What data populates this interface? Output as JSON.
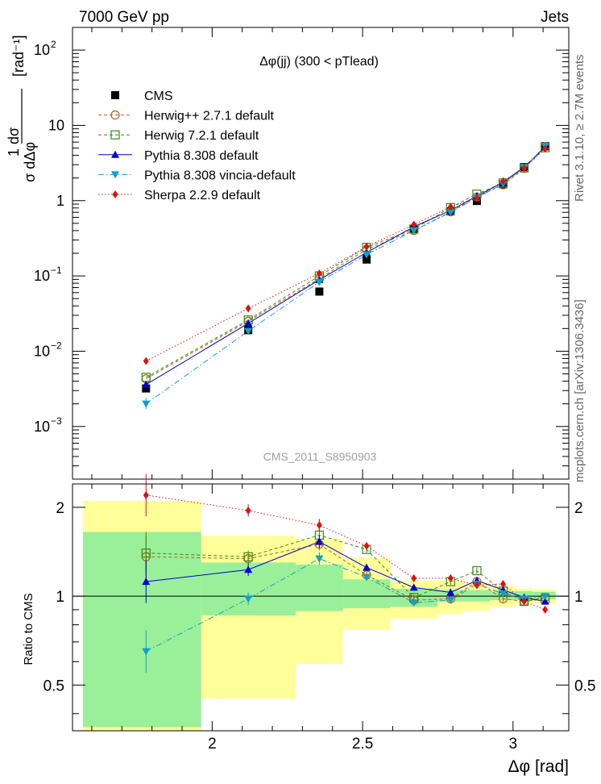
{
  "header": {
    "left": "7000 GeV pp",
    "right": "Jets",
    "side_top": "Rivet 3.1.10, ≥ 2.7M events",
    "side_bottom": "mcplots.cern.ch [arXiv:1306.3436]"
  },
  "chart_data": [
    {
      "type": "scatter",
      "title": "Δφ(jj) (300 < pTlead)",
      "watermark": "CMS_2011_S8950903",
      "ylabel_top": "1 dσ",
      "ylabel_bottom": "σ dΔφ",
      "ylabel_unit": "[rad⁻¹]",
      "yscale": "log",
      "ylim": [
        0.0002,
        200
      ],
      "xlim": [
        1.5358,
        3.1853
      ],
      "x": [
        1.7802,
        2.12,
        2.3562,
        2.5133,
        2.6704,
        2.7925,
        2.8798,
        2.967,
        3.0369,
        3.1067
      ],
      "series": [
        {
          "name": "CMS",
          "color": "#000000",
          "marker": "square-filled",
          "line": "none",
          "values": [
            0.0032,
            0.019,
            0.062,
            0.165,
            0.42,
            0.72,
            0.99,
            1.65,
            2.8,
            5.3
          ]
        },
        {
          "name": "Herwig++ 2.7.1 default",
          "color": "#b06020",
          "marker": "circle-open",
          "line": "dashed",
          "values": [
            0.0043,
            0.025,
            0.092,
            0.225,
            0.4,
            0.71,
            1.12,
            1.62,
            2.68,
            5.25
          ]
        },
        {
          "name": "Herwig 7.2.1 default",
          "color": "#3a8a10",
          "marker": "square-open",
          "line": "dashed",
          "values": [
            0.0045,
            0.026,
            0.1,
            0.24,
            0.42,
            0.81,
            1.22,
            1.72,
            2.72,
            5.05
          ]
        },
        {
          "name": "Pythia 8.308 default",
          "color": "#0000d0",
          "marker": "triangle-up",
          "line": "solid",
          "values": [
            0.0036,
            0.0235,
            0.089,
            0.205,
            0.45,
            0.74,
            1.15,
            1.75,
            2.8,
            5.15
          ]
        },
        {
          "name": "Pythia 8.308 vincia-default",
          "color": "#10a0c8",
          "marker": "triangle-down",
          "line": "dashdot",
          "values": [
            0.002,
            0.0185,
            0.083,
            0.192,
            0.4,
            0.7,
            1.09,
            1.68,
            2.75,
            5.3
          ]
        },
        {
          "name": "Sherpa 2.2.9 default",
          "color": "#e01010",
          "marker": "diamond",
          "line": "dotted",
          "values": [
            0.0074,
            0.037,
            0.108,
            0.245,
            0.48,
            0.83,
            1.08,
            1.82,
            2.68,
            4.9
          ]
        }
      ]
    },
    {
      "type": "line",
      "ylabel": "Ratio to CMS",
      "xlabel": "Δφ [rad]",
      "yscale": "log",
      "ylim": [
        0.35,
        2.4
      ],
      "xlim": [
        1.5358,
        3.1853
      ],
      "yticks": [
        "0.5",
        "1",
        "2"
      ],
      "xticks": [
        "2",
        "2.5",
        "3"
      ],
      "x": [
        1.7802,
        2.12,
        2.3562,
        2.5133,
        2.6704,
        2.7925,
        2.8798,
        2.967,
        3.0369,
        3.1067
      ],
      "bands": {
        "edges": [
          1.5708,
          1.9635,
          2.2776,
          2.4347,
          2.5918,
          2.7489,
          2.8362,
          2.9234,
          3.0107,
          3.063,
          3.1416
        ],
        "stat_lo": [
          0.36,
          0.86,
          0.89,
          0.91,
          0.92,
          0.96,
          0.96,
          0.97,
          0.97,
          0.975
        ],
        "stat_hi": [
          1.65,
          1.3,
          1.28,
          1.14,
          1.06,
          1.05,
          1.05,
          1.04,
          1.04,
          1.035
        ],
        "syst_lo": [
          0.34,
          0.45,
          0.59,
          0.77,
          0.84,
          0.87,
          0.89,
          0.92,
          0.94,
          0.945
        ],
        "syst_hi": [
          2.1,
          1.6,
          1.56,
          1.35,
          1.13,
          1.13,
          1.11,
          1.08,
          1.06,
          1.055
        ]
      },
      "series": [
        {
          "name": "Herwig++ 2.7.1 default",
          "color": "#b06020",
          "marker": "circle-open",
          "line": "dashed",
          "values": [
            1.36,
            1.34,
            1.5,
            1.18,
            0.97,
            0.98,
            1.12,
            0.98,
            0.96,
            0.99
          ]
        },
        {
          "name": "Herwig 7.2.1 default",
          "color": "#3a8a10",
          "marker": "square-open",
          "line": "dashed",
          "values": [
            1.4,
            1.36,
            1.61,
            1.44,
            0.99,
            1.12,
            1.22,
            1.04,
            0.96,
            0.98
          ]
        },
        {
          "name": "Pythia 8.308 default",
          "color": "#0000d0",
          "marker": "triangle-up",
          "line": "solid",
          "values": [
            1.12,
            1.23,
            1.53,
            1.25,
            1.07,
            1.03,
            1.13,
            1.05,
            0.99,
            0.96
          ]
        },
        {
          "name": "Pythia 8.308 vincia-default",
          "color": "#10a0c8",
          "marker": "triangle-down",
          "line": "dashdot",
          "values": [
            0.65,
            0.98,
            1.34,
            1.16,
            0.95,
            0.97,
            1.1,
            1.02,
            0.98,
            1.0
          ]
        },
        {
          "name": "Sherpa 2.2.9 default",
          "color": "#e01010",
          "marker": "diamond",
          "line": "dotted",
          "values": [
            2.2,
            1.95,
            1.74,
            1.48,
            1.15,
            1.15,
            1.09,
            1.1,
            0.96,
            0.9
          ]
        }
      ]
    }
  ]
}
